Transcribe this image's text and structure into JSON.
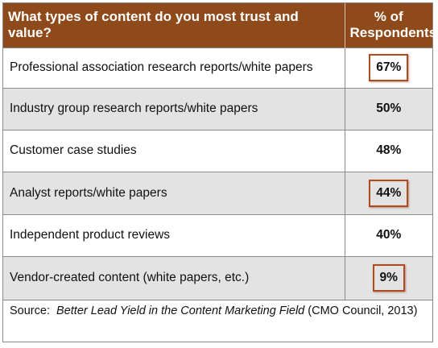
{
  "chart_data": {
    "type": "table",
    "columns": [
      "What types of content do you most trust and value?",
      "% of Respondents"
    ],
    "rows": [
      {
        "label": "Professional association research reports/white papers",
        "value": "67%",
        "percent": 67,
        "highlighted": true
      },
      {
        "label": "Industry group research reports/white papers",
        "value": "50%",
        "percent": 50,
        "highlighted": false
      },
      {
        "label": "Customer case studies",
        "value": "48%",
        "percent": 48,
        "highlighted": false
      },
      {
        "label": "Analyst reports/white papers",
        "value": "44%",
        "percent": 44,
        "highlighted": true
      },
      {
        "label": "Independent product reviews",
        "value": "40%",
        "percent": 40,
        "highlighted": false
      },
      {
        "label": "Vendor-created content (white papers, etc.)",
        "value": "9%",
        "percent": 9,
        "highlighted": true
      }
    ],
    "source": {
      "prefix": "Source:",
      "title": "Better Lead Yield in the Content Marketing Field",
      "suffix": "(CMO Council, 2013)"
    }
  },
  "colors": {
    "header_bg": "#8e4a1a",
    "header_text": "#ffffff",
    "alt_row_bg": "#e3e3e3",
    "highlight_border": "#b24a1f"
  }
}
